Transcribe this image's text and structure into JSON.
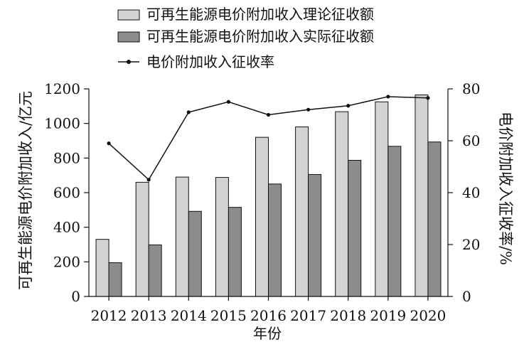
{
  "chart_data": {
    "type": "bar",
    "categories": [
      "2012",
      "2013",
      "2014",
      "2015",
      "2016",
      "2017",
      "2018",
      "2019",
      "2020"
    ],
    "series": [
      {
        "name": "可再生能源电价附加收入理论征收额",
        "type": "bar",
        "axis": "left",
        "color": "#d3d3d3",
        "values": [
          330,
          660,
          690,
          688,
          920,
          980,
          1068,
          1125,
          1165
        ]
      },
      {
        "name": "可再生能源电价附加收入实际征收额",
        "type": "bar",
        "axis": "right-none",
        "color": "#8c8c8c",
        "values": [
          195,
          298,
          492,
          515,
          650,
          705,
          787,
          868,
          893
        ]
      },
      {
        "name": "电价附加收入征收率",
        "type": "line",
        "axis": "right",
        "color": "#111111",
        "values": [
          59,
          45,
          71,
          75,
          70,
          72,
          73.5,
          77,
          76.5
        ]
      }
    ],
    "xlabel": "年份",
    "ylabel": "可再生能源电价附加收入/亿元",
    "y2label": "电价附加收入征收率/%",
    "ylim": [
      0,
      1200
    ],
    "y2lim": [
      0,
      80
    ],
    "yticks": [
      "0",
      "200",
      "400",
      "600",
      "800",
      "1000",
      "1200"
    ],
    "y2ticks": [
      "0",
      "20",
      "40",
      "60",
      "80"
    ],
    "grid": false,
    "legend_position": "top-center"
  }
}
